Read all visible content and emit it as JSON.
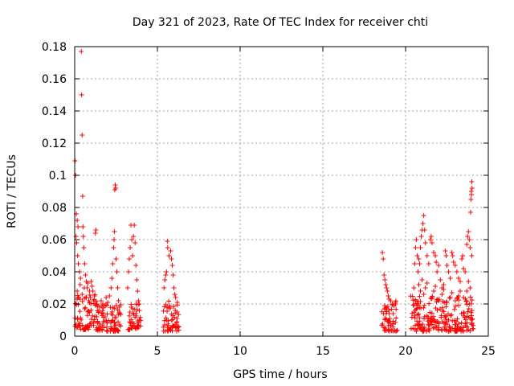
{
  "chart_data": {
    "type": "scatter",
    "title": "Day 321 of 2023, Rate Of TEC Index for receiver chti",
    "xlabel": "GPS time / hours",
    "ylabel": "ROTI / TECUs",
    "xlim": [
      0,
      25
    ],
    "ylim": [
      0,
      0.18
    ],
    "xticks": [
      0,
      5,
      10,
      15,
      20,
      25
    ],
    "xtick_labels": [
      "0",
      "5",
      "10",
      "15",
      "20",
      "25"
    ],
    "yticks": [
      0,
      0.02,
      0.04,
      0.06,
      0.08,
      0.1,
      0.12,
      0.14,
      0.16,
      0.18
    ],
    "ytick_labels": [
      "0",
      "0.02",
      "0.04",
      "0.06",
      "0.08",
      "0.1",
      "0.12",
      "0.14",
      "0.16",
      "0.18"
    ],
    "grid": true,
    "marker": "plus",
    "color": "#ff0000",
    "series": [
      {
        "name": "ROTI",
        "points": [
          [
            0.02,
            0.109
          ],
          [
            0.05,
            0.1
          ],
          [
            0.1,
            0.076
          ],
          [
            0.15,
            0.072
          ],
          [
            0.2,
            0.068
          ],
          [
            0.08,
            0.062
          ],
          [
            0.12,
            0.058
          ],
          [
            0.18,
            0.05
          ],
          [
            0.22,
            0.045
          ],
          [
            0.3,
            0.04
          ],
          [
            0.35,
            0.036
          ],
          [
            0.4,
            0.177
          ],
          [
            0.42,
            0.15
          ],
          [
            0.45,
            0.125
          ],
          [
            0.48,
            0.087
          ],
          [
            0.5,
            0.068
          ],
          [
            0.52,
            0.062
          ],
          [
            0.55,
            0.055
          ],
          [
            0.6,
            0.045
          ],
          [
            0.65,
            0.038
          ],
          [
            0.7,
            0.034
          ],
          [
            0.75,
            0.03
          ],
          [
            0.8,
            0.033
          ],
          [
            0.9,
            0.028
          ],
          [
            1.0,
            0.034
          ],
          [
            1.05,
            0.031
          ],
          [
            1.1,
            0.028
          ],
          [
            1.2,
            0.025
          ],
          [
            0.15,
            0.028
          ],
          [
            0.25,
            0.024
          ],
          [
            0.33,
            0.032
          ],
          [
            0.45,
            0.026
          ],
          [
            0.58,
            0.03
          ],
          [
            0.68,
            0.024
          ],
          [
            0.85,
            0.022
          ],
          [
            0.95,
            0.024
          ],
          [
            1.15,
            0.022
          ],
          [
            1.25,
            0.064
          ],
          [
            1.28,
            0.066
          ],
          [
            1.35,
            0.02
          ],
          [
            1.5,
            0.018
          ],
          [
            1.6,
            0.022
          ],
          [
            1.7,
            0.02
          ],
          [
            1.8,
            0.019
          ],
          [
            1.9,
            0.024
          ],
          [
            2.0,
            0.021
          ],
          [
            2.1,
            0.025
          ],
          [
            2.2,
            0.03
          ],
          [
            2.25,
            0.036
          ],
          [
            2.3,
            0.045
          ],
          [
            2.35,
            0.055
          ],
          [
            2.38,
            0.06
          ],
          [
            2.4,
            0.065
          ],
          [
            2.42,
            0.091
          ],
          [
            2.45,
            0.094
          ],
          [
            2.48,
            0.092
          ],
          [
            2.5,
            0.048
          ],
          [
            2.55,
            0.04
          ],
          [
            2.6,
            0.03
          ],
          [
            2.65,
            0.022
          ],
          [
            2.7,
            0.018
          ],
          [
            3.2,
            0.03
          ],
          [
            3.25,
            0.04
          ],
          [
            3.3,
            0.048
          ],
          [
            3.35,
            0.055
          ],
          [
            3.4,
            0.069
          ],
          [
            3.45,
            0.06
          ],
          [
            3.5,
            0.05
          ],
          [
            3.55,
            0.062
          ],
          [
            3.6,
            0.069
          ],
          [
            3.65,
            0.058
          ],
          [
            3.7,
            0.044
          ],
          [
            3.75,
            0.035
          ],
          [
            3.8,
            0.028
          ],
          [
            3.85,
            0.022
          ],
          [
            3.9,
            0.02
          ],
          [
            5.4,
            0.03
          ],
          [
            5.45,
            0.035
          ],
          [
            5.5,
            0.038
          ],
          [
            5.55,
            0.04
          ],
          [
            5.6,
            0.059
          ],
          [
            5.62,
            0.055
          ],
          [
            5.7,
            0.05
          ],
          [
            5.8,
            0.053
          ],
          [
            5.85,
            0.048
          ],
          [
            5.9,
            0.044
          ],
          [
            5.95,
            0.038
          ],
          [
            6.0,
            0.03
          ],
          [
            6.05,
            0.026
          ],
          [
            6.1,
            0.024
          ],
          [
            6.2,
            0.021
          ],
          [
            18.6,
            0.052
          ],
          [
            18.65,
            0.048
          ],
          [
            18.7,
            0.038
          ],
          [
            18.75,
            0.035
          ],
          [
            18.8,
            0.032
          ],
          [
            18.85,
            0.03
          ],
          [
            18.9,
            0.028
          ],
          [
            18.95,
            0.025
          ],
          [
            19.0,
            0.023
          ],
          [
            19.1,
            0.022
          ],
          [
            19.2,
            0.02
          ],
          [
            19.3,
            0.019
          ],
          [
            19.4,
            0.02
          ],
          [
            20.5,
            0.03
          ],
          [
            20.55,
            0.045
          ],
          [
            20.6,
            0.055
          ],
          [
            20.65,
            0.06
          ],
          [
            20.7,
            0.05
          ],
          [
            20.75,
            0.04
          ],
          [
            20.8,
            0.048
          ],
          [
            20.85,
            0.045
          ],
          [
            20.9,
            0.055
          ],
          [
            20.95,
            0.062
          ],
          [
            21.0,
            0.066
          ],
          [
            21.05,
            0.07
          ],
          [
            21.1,
            0.075
          ],
          [
            21.15,
            0.066
          ],
          [
            21.2,
            0.058
          ],
          [
            21.3,
            0.05
          ],
          [
            21.4,
            0.045
          ],
          [
            21.5,
            0.06
          ],
          [
            21.55,
            0.062
          ],
          [
            21.6,
            0.058
          ],
          [
            21.7,
            0.052
          ],
          [
            21.8,
            0.05
          ],
          [
            21.85,
            0.046
          ],
          [
            21.9,
            0.04
          ],
          [
            22.0,
            0.044
          ],
          [
            22.1,
            0.035
          ],
          [
            22.2,
            0.03
          ],
          [
            22.3,
            0.032
          ],
          [
            22.4,
            0.053
          ],
          [
            22.45,
            0.05
          ],
          [
            22.5,
            0.044
          ],
          [
            22.6,
            0.04
          ],
          [
            22.7,
            0.036
          ],
          [
            22.8,
            0.052
          ],
          [
            22.85,
            0.05
          ],
          [
            22.9,
            0.046
          ],
          [
            23.0,
            0.044
          ],
          [
            23.1,
            0.04
          ],
          [
            23.2,
            0.036
          ],
          [
            23.3,
            0.034
          ],
          [
            23.4,
            0.048
          ],
          [
            23.45,
            0.05
          ],
          [
            23.5,
            0.042
          ],
          [
            23.6,
            0.04
          ],
          [
            23.7,
            0.057
          ],
          [
            23.75,
            0.062
          ],
          [
            23.8,
            0.065
          ],
          [
            23.85,
            0.06
          ],
          [
            23.9,
            0.055
          ],
          [
            23.93,
            0.077
          ],
          [
            23.95,
            0.085
          ],
          [
            23.97,
            0.09
          ],
          [
            24.0,
            0.096
          ],
          [
            24.02,
            0.092
          ],
          [
            23.98,
            0.088
          ],
          [
            24.0,
            0.05
          ],
          [
            21.2,
            0.03
          ],
          [
            21.7,
            0.028
          ],
          [
            22.2,
            0.026
          ],
          [
            22.7,
            0.024
          ],
          [
            23.2,
            0.025
          ],
          [
            23.7,
            0.028
          ],
          [
            20.8,
            0.032
          ],
          [
            21.0,
            0.035
          ],
          [
            21.3,
            0.033
          ],
          [
            21.8,
            0.031
          ],
          [
            22.3,
            0.029
          ],
          [
            22.8,
            0.027
          ],
          [
            23.3,
            0.028
          ],
          [
            23.8,
            0.034
          ],
          [
            20.6,
            0.022
          ],
          [
            20.9,
            0.028
          ],
          [
            21.1,
            0.026
          ],
          [
            21.6,
            0.024
          ],
          [
            22.0,
            0.022
          ],
          [
            22.5,
            0.021
          ],
          [
            23.0,
            0.022
          ],
          [
            23.5,
            0.024
          ],
          [
            23.9,
            0.03
          ]
        ],
        "bands": [
          {
            "x": [
              0.0,
              1.4
            ],
            "y": [
              0.004,
              0.026
            ]
          },
          {
            "x": [
              1.3,
              2.8
            ],
            "y": [
              0.003,
              0.02
            ]
          },
          {
            "x": [
              3.2,
              4.0
            ],
            "y": [
              0.004,
              0.02
            ]
          },
          {
            "x": [
              5.3,
              6.3
            ],
            "y": [
              0.003,
              0.022
            ]
          },
          {
            "x": [
              18.5,
              19.5
            ],
            "y": [
              0.003,
              0.022
            ]
          },
          {
            "x": [
              20.3,
              24.1
            ],
            "y": [
              0.003,
              0.025
            ]
          }
        ]
      }
    ]
  }
}
